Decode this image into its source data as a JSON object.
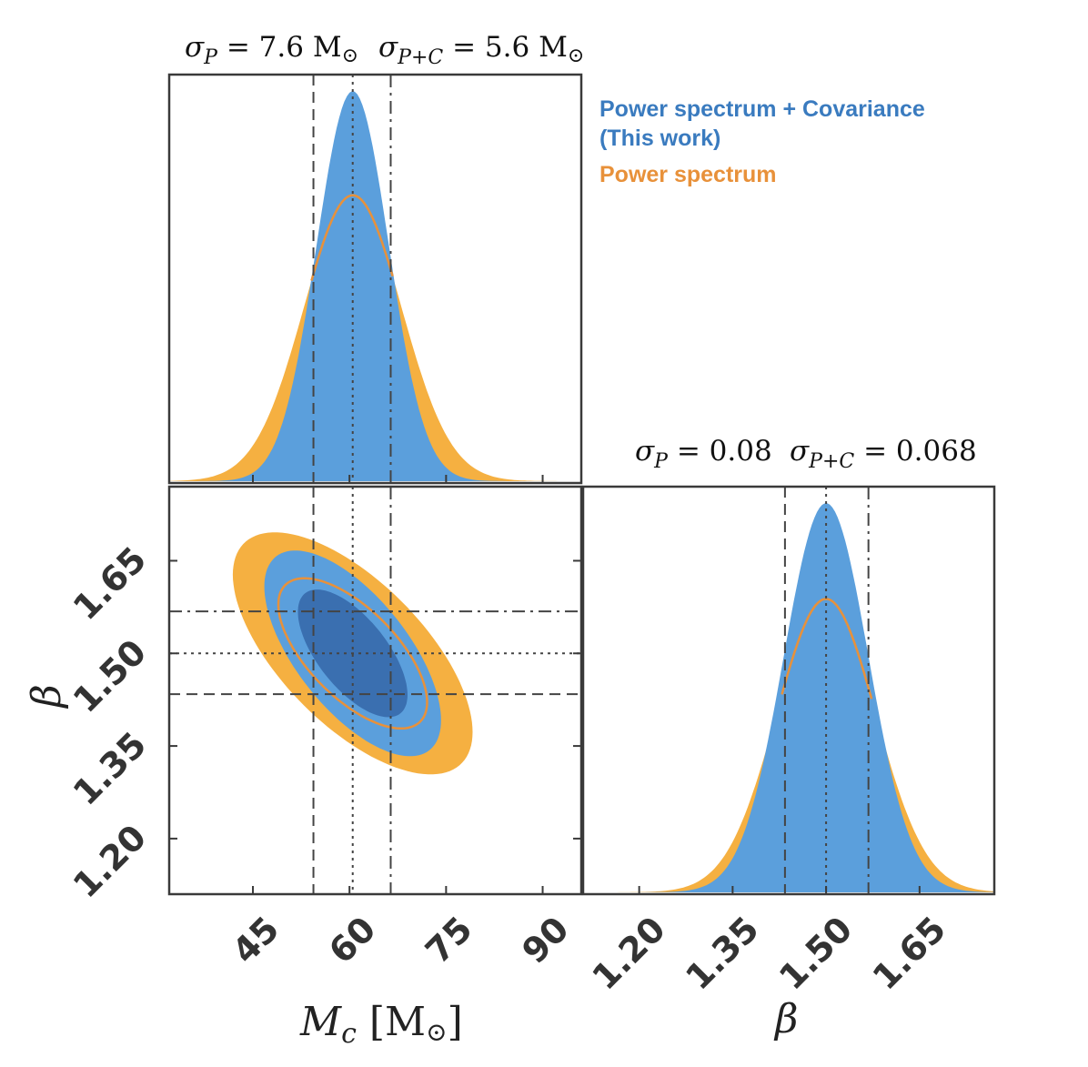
{
  "chart_data": {
    "type": "corner",
    "colors": {
      "combined": "#5b9fdc",
      "combined_dark": "#3a6fb0",
      "power": "#f5b041",
      "power_line": "#e8913a",
      "lines": "#444444"
    },
    "legend": [
      {
        "label": "Power spectrum + Covariance",
        "color": "#3a7bbf"
      },
      {
        "label": "(This work)",
        "color": "#3a7bbf"
      },
      {
        "label": "Power spectrum",
        "color": "#e8913a"
      }
    ],
    "params": {
      "Mc": {
        "label": "Mc [M⊙]",
        "range": [
          32,
          96
        ],
        "ticks": [
          "45",
          "60",
          "75",
          "90"
        ],
        "tick_values": [
          45,
          60,
          75,
          90
        ],
        "mean": 60.5,
        "sigma_P": 7.6,
        "sigma_PC": 5.6
      },
      "beta": {
        "label": "β",
        "range": [
          1.11,
          1.77
        ],
        "ticks": [
          "1.20",
          "1.35",
          "1.50",
          "1.65"
        ],
        "tick_values": [
          1.2,
          1.35,
          1.5,
          1.65
        ],
        "mean": 1.5,
        "sigma_P": 0.08,
        "sigma_PC": 0.068
      }
    },
    "vlines_Mc": {
      "dashed": 54.4,
      "dotted": 60.5,
      "dashdot": 66.4
    },
    "vlines_beta": {
      "dashed": 1.434,
      "dotted": 1.5,
      "dashdot": 1.568
    },
    "hlines_beta": {
      "dashed": 1.434,
      "dotted": 1.5,
      "dashdot": 1.568
    },
    "correlation": -0.65,
    "annotations": {
      "top": {
        "sigma_P": "σP = 7.6 M⊙",
        "sigma_PC": "σP+C = 5.6 M⊙"
      },
      "right": {
        "sigma_P": "σP = 0.08",
        "sigma_PC": "σP+C = 0.068"
      }
    },
    "xlabels": [
      "Mc [M⊙]",
      "β"
    ],
    "ylabel": "β"
  },
  "labels": {
    "top_sigma_p_sym": "σ",
    "top_sigma_p_sub": "P",
    "top_sigma_p_val": " = 7.6 M",
    "top_sigma_p_sun": "⊙",
    "top_sigma_pc_sym": "σ",
    "top_sigma_pc_sub": "P+C",
    "top_sigma_pc_val": " = 5.6 M",
    "top_sigma_pc_sun": "⊙",
    "right_sigma_p_sym": "σ",
    "right_sigma_p_sub": "P",
    "right_sigma_p_val": " = 0.08",
    "right_sigma_pc_sym": "σ",
    "right_sigma_pc_sub": "P+C",
    "right_sigma_pc_val": " = 0.068",
    "xlabel_mc_main": "M",
    "xlabel_mc_sub": "c",
    "xlabel_mc_unit": " [M",
    "xlabel_mc_sun": "⊙",
    "xlabel_mc_close": "]",
    "xlabel_beta": "β",
    "ylabel_beta": "β"
  }
}
